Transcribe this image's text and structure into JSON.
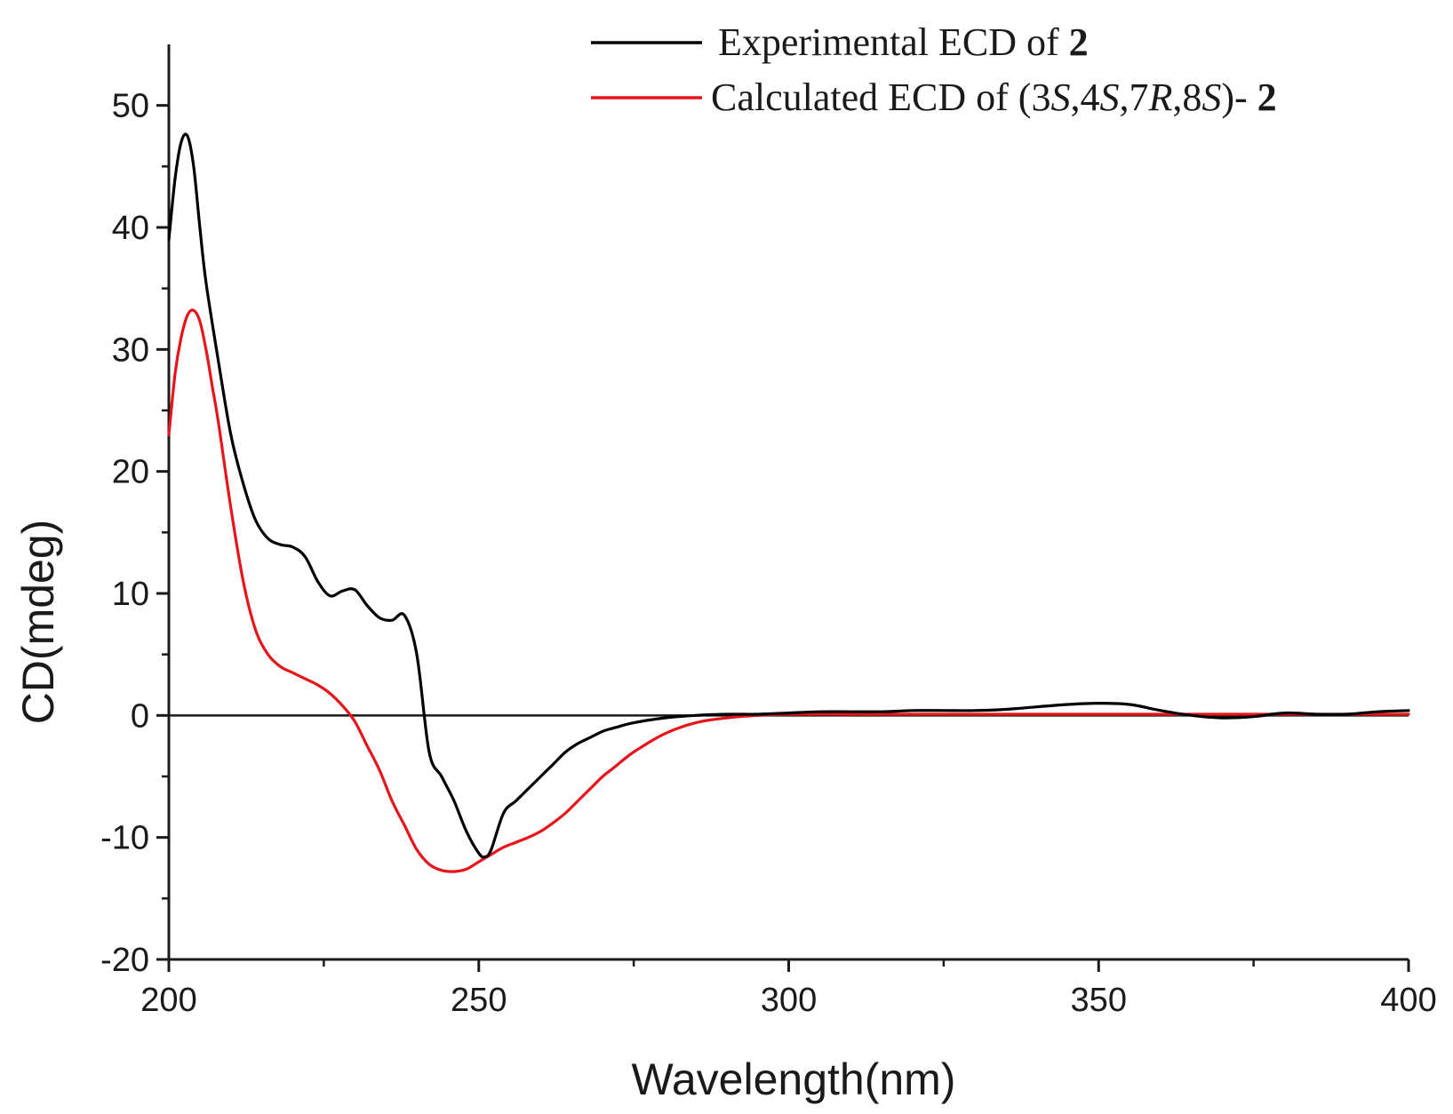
{
  "chart_data": {
    "type": "line",
    "title": "",
    "xlabel": "Wavelength(nm)",
    "ylabel": "CD(mdeg)",
    "xlim": [
      200,
      400
    ],
    "ylim": [
      -20,
      55
    ],
    "xticks": [
      200,
      250,
      300,
      350,
      400
    ],
    "yticks": [
      -20,
      -10,
      0,
      10,
      20,
      30,
      40,
      50
    ],
    "xtick_labels": [
      "200",
      "250",
      "300",
      "350",
      "400"
    ],
    "ytick_labels": [
      "-20",
      "-10",
      "0",
      "10",
      "20",
      "30",
      "40",
      "50"
    ],
    "grid": false,
    "legend_position": "top-right",
    "zero_line": true,
    "series": [
      {
        "name": "Experimental ECD of 2",
        "legend_parts": [
          {
            "text": "Experimental ECD of ",
            "style": "normal"
          },
          {
            "text": "2",
            "style": "bold"
          }
        ],
        "color": "#000000",
        "x": [
          200,
          201,
          202,
          203,
          204,
          205,
          206,
          208,
          210,
          212,
          214,
          216,
          218,
          220,
          222,
          224,
          226,
          228,
          230,
          232,
          234,
          236,
          238,
          240,
          242,
          244,
          246,
          248,
          250,
          251,
          252,
          254,
          256,
          258,
          260,
          262,
          264,
          266,
          268,
          270,
          272,
          275,
          280,
          285,
          290,
          295,
          300,
          305,
          310,
          315,
          320,
          325,
          330,
          335,
          340,
          345,
          350,
          355,
          360,
          365,
          370,
          375,
          380,
          385,
          390,
          395,
          400
        ],
        "y": [
          39,
          44,
          47,
          47.5,
          45,
          40,
          35.5,
          29,
          23,
          19,
          16,
          14.5,
          14,
          13.8,
          13,
          11,
          9.8,
          10.2,
          10.3,
          9,
          8,
          7.8,
          8.2,
          5,
          -3,
          -5,
          -7,
          -9.5,
          -11.3,
          -11.6,
          -11,
          -8,
          -7,
          -6,
          -5,
          -4,
          -3,
          -2.3,
          -1.8,
          -1.3,
          -1,
          -0.6,
          -0.2,
          0,
          0.1,
          0.1,
          0.2,
          0.3,
          0.3,
          0.3,
          0.4,
          0.4,
          0.4,
          0.5,
          0.7,
          0.9,
          1,
          0.9,
          0.4,
          0,
          -0.2,
          -0.1,
          0.2,
          0.1,
          0.1,
          0.3,
          0.4
        ]
      },
      {
        "name": "Calculated ECD of (3S,4S,7R,8S)- 2",
        "legend_parts": [
          {
            "text": "Calculated ECD of (3",
            "style": "normal"
          },
          {
            "text": "S",
            "style": "italic"
          },
          {
            "text": ",4",
            "style": "normal"
          },
          {
            "text": "S",
            "style": "italic"
          },
          {
            "text": ",7",
            "style": "normal"
          },
          {
            "text": "R",
            "style": "italic"
          },
          {
            "text": ",8",
            "style": "normal"
          },
          {
            "text": "S",
            "style": "italic"
          },
          {
            "text": ")- ",
            "style": "normal"
          },
          {
            "text": "2",
            "style": "bold"
          }
        ],
        "color": "#e8141b",
        "x": [
          200,
          201,
          202,
          203,
          204,
          205,
          206,
          207,
          208,
          210,
          212,
          214,
          216,
          218,
          220,
          222,
          224,
          226,
          228,
          230,
          232,
          234,
          236,
          238,
          240,
          242,
          244,
          246,
          248,
          250,
          252,
          254,
          256,
          258,
          260,
          262,
          264,
          266,
          268,
          270,
          272,
          275,
          280,
          285,
          290,
          295,
          300,
          310,
          320,
          330,
          340,
          350,
          360,
          370,
          380,
          390,
          400
        ],
        "y": [
          23,
          28,
          31,
          32.8,
          33.2,
          32.3,
          30,
          27,
          24,
          17,
          11,
          7,
          5,
          4,
          3.5,
          3,
          2.5,
          1.8,
          0.8,
          -0.5,
          -2.5,
          -4.5,
          -7,
          -9,
          -11,
          -12.2,
          -12.7,
          -12.8,
          -12.6,
          -12,
          -11.4,
          -10.8,
          -10.4,
          -10,
          -9.5,
          -8.8,
          -8,
          -7,
          -6,
          -5,
          -4.2,
          -3,
          -1.5,
          -0.6,
          -0.2,
          0,
          0.1,
          0.1,
          0.1,
          0.1,
          0.1,
          0.1,
          0.1,
          0.1,
          0.1,
          0.1,
          0.1
        ]
      }
    ]
  }
}
